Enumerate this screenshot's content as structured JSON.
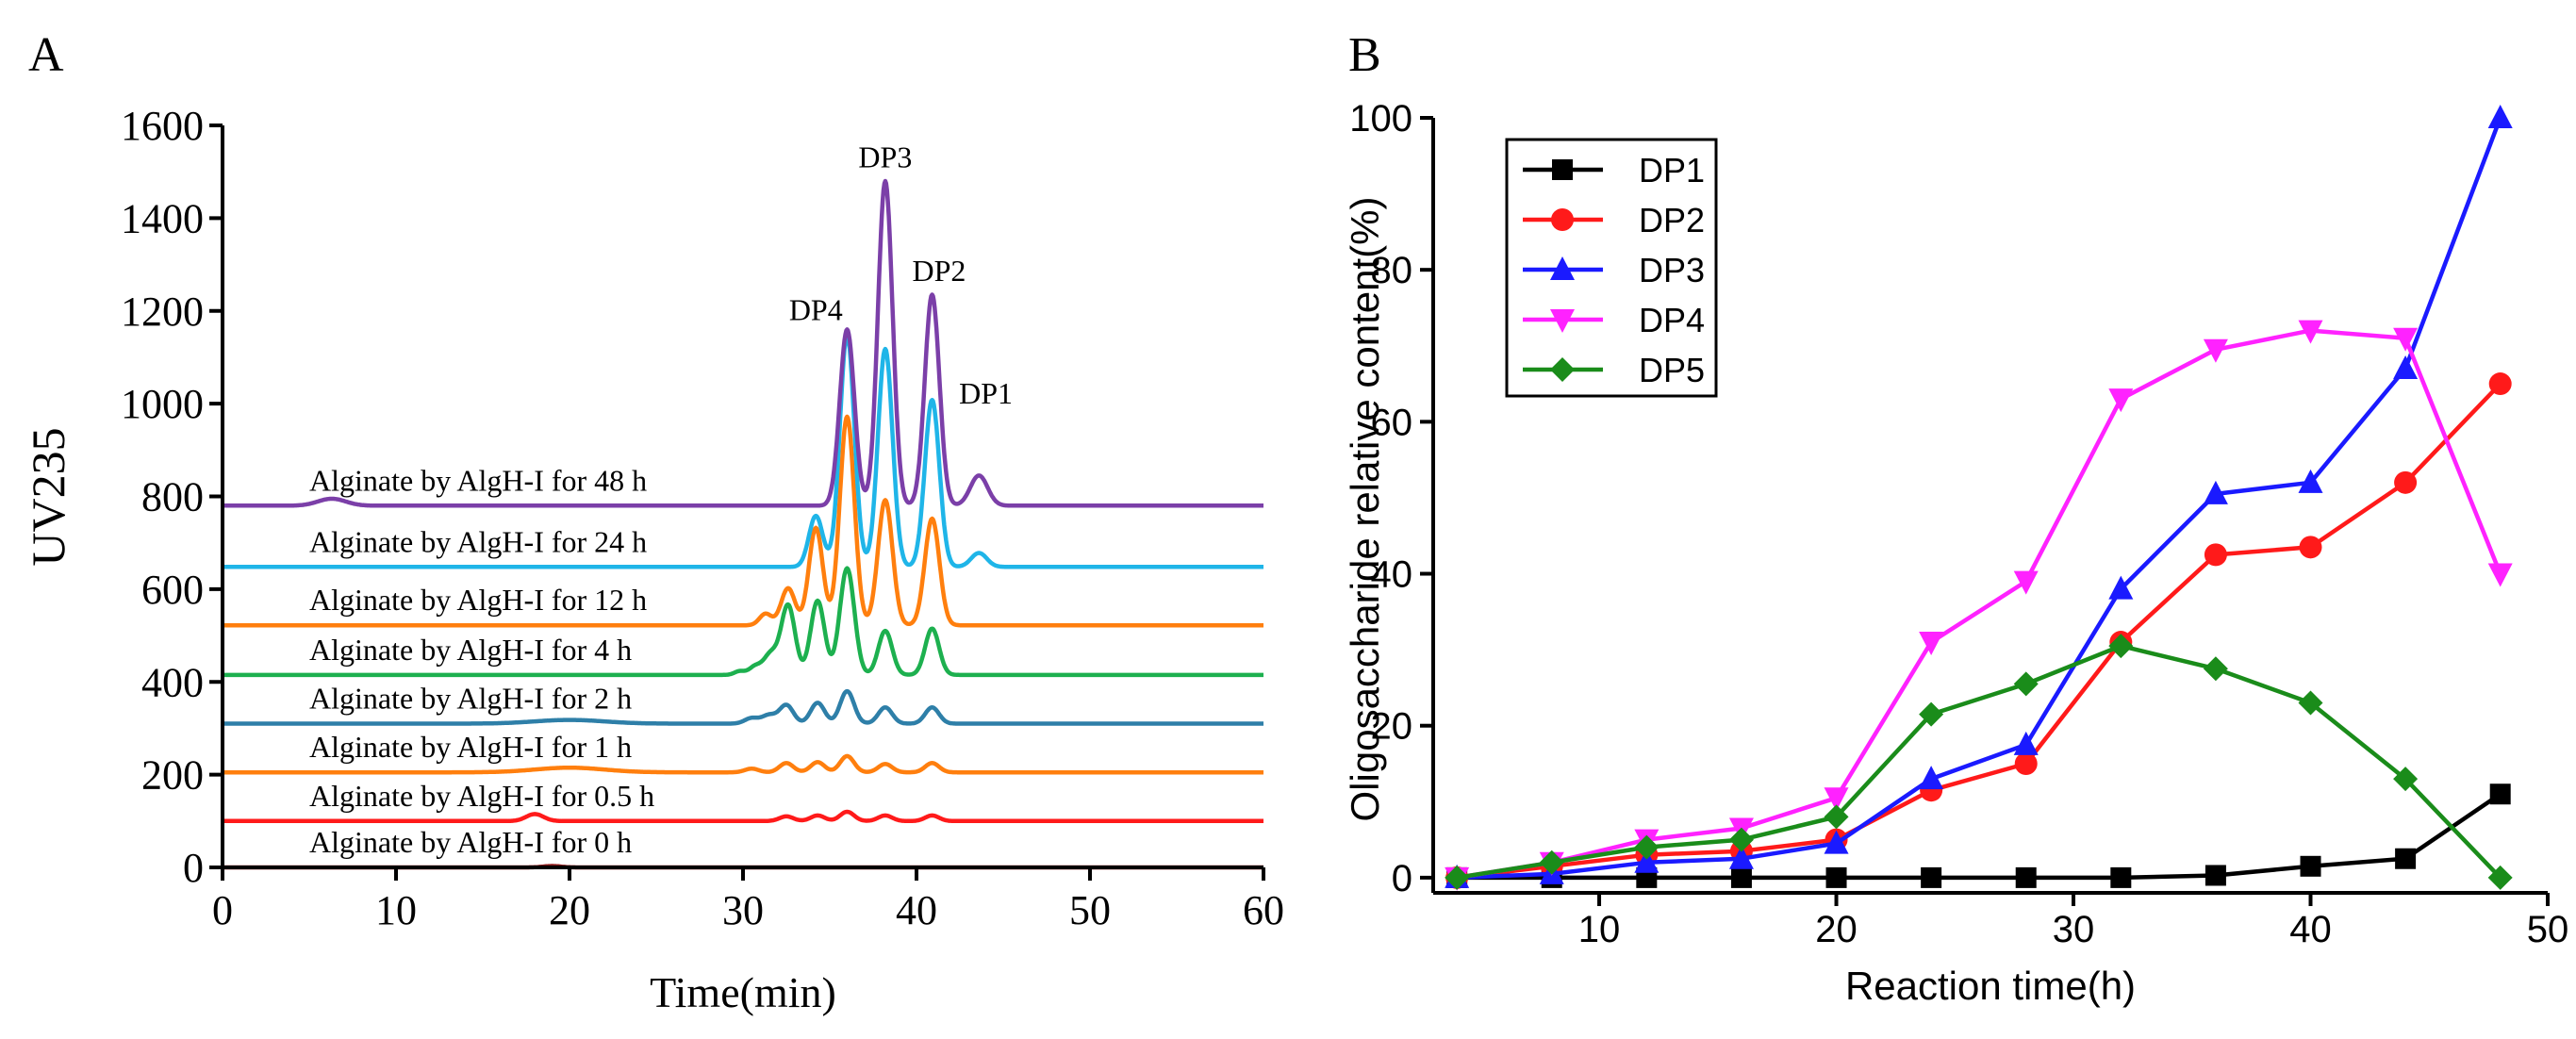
{
  "panels": {
    "a_label": "A",
    "b_label": "B"
  },
  "chart_data": [
    {
      "type": "line",
      "panel": "A",
      "title": "",
      "xlabel": "Time(min)",
      "ylabel": "UV235",
      "xlim": [
        0,
        60
      ],
      "ylim": [
        0,
        1600
      ],
      "xticks": [
        0,
        10,
        20,
        30,
        40,
        50,
        60
      ],
      "yticks": [
        0,
        200,
        400,
        600,
        800,
        1000,
        1200,
        1400,
        1600
      ],
      "peak_labels": [
        {
          "text": "DP4",
          "x": 34.2,
          "y": 1180
        },
        {
          "text": "DP3",
          "x": 38.2,
          "y": 1510
        },
        {
          "text": "DP2",
          "x": 41.3,
          "y": 1265
        },
        {
          "text": "DP1",
          "x": 44.0,
          "y": 1000
        }
      ],
      "series": [
        {
          "name": "Alginate by AlgH-I for 0 h",
          "color": "#8c1a1a",
          "baseline": 0,
          "peaks": [
            [
              19,
              3,
              0.5
            ]
          ]
        },
        {
          "name": "Alginate by AlgH-I for 0.5 h",
          "color": "#ff1a1a",
          "baseline": 100,
          "peaks": [
            [
              18,
              15,
              0.5
            ],
            [
              32.5,
              10,
              0.4
            ],
            [
              34.3,
              12,
              0.4
            ],
            [
              36,
              20,
              0.4
            ],
            [
              38.2,
              12,
              0.4
            ],
            [
              40.9,
              12,
              0.4
            ]
          ]
        },
        {
          "name": "Alginate by AlgH-I for 1 h",
          "color": "#ff7f0e",
          "baseline": 205,
          "peaks": [
            [
              20,
              10,
              2
            ],
            [
              30.5,
              8,
              0.4
            ],
            [
              32.5,
              20,
              0.4
            ],
            [
              34.3,
              22,
              0.4
            ],
            [
              36,
              35,
              0.4
            ],
            [
              38.2,
              18,
              0.4
            ],
            [
              40.9,
              20,
              0.4
            ]
          ]
        },
        {
          "name": "Alginate by AlgH-I for 2 h",
          "color": "#2e7fa8",
          "baseline": 310,
          "peaks": [
            [
              20,
              8,
              2
            ],
            [
              30.5,
              12,
              0.4
            ],
            [
              31.5,
              18,
              0.4
            ],
            [
              32.5,
              40,
              0.4
            ],
            [
              34.3,
              45,
              0.4
            ],
            [
              36,
              70,
              0.4
            ],
            [
              38.2,
              35,
              0.4
            ],
            [
              40.9,
              35,
              0.4
            ]
          ]
        },
        {
          "name": "Alginate by AlgH-I for 4 h",
          "color": "#1db04f",
          "baseline": 415,
          "peaks": [
            [
              29.8,
              8,
              0.3
            ],
            [
              30.7,
              18,
              0.35
            ],
            [
              31.6,
              45,
              0.4
            ],
            [
              32.6,
              150,
              0.4
            ],
            [
              34.3,
              160,
              0.4
            ],
            [
              36,
              230,
              0.42
            ],
            [
              38.2,
              95,
              0.4
            ],
            [
              40.9,
              100,
              0.4
            ]
          ]
        },
        {
          "name": "Alginate by AlgH-I for 12 h",
          "color": "#ff7f0e",
          "baseline": 522,
          "peaks": [
            [
              31.3,
              25,
              0.35
            ],
            [
              32.6,
              80,
              0.4
            ],
            [
              34.2,
              210,
              0.4
            ],
            [
              36,
              450,
              0.42
            ],
            [
              38.2,
              270,
              0.42
            ],
            [
              40.9,
              230,
              0.42
            ]
          ]
        },
        {
          "name": "Alginate by AlgH-I for 24 h",
          "color": "#1fb5e8",
          "baseline": 648,
          "peaks": [
            [
              34.2,
              110,
              0.4
            ],
            [
              36,
              500,
              0.42
            ],
            [
              38.2,
              470,
              0.42
            ],
            [
              40.9,
              360,
              0.42
            ],
            [
              43.6,
              30,
              0.45
            ]
          ]
        },
        {
          "name": "Alginate by AlgH-I for 48 h",
          "color": "#7b3fa8",
          "baseline": 780,
          "peaks": [
            [
              6.3,
              15,
              0.8
            ],
            [
              36,
              380,
              0.42
            ],
            [
              38.2,
              700,
              0.42
            ],
            [
              40.9,
              455,
              0.42
            ],
            [
              43.6,
              65,
              0.5
            ]
          ]
        }
      ]
    },
    {
      "type": "line",
      "panel": "B",
      "title": "",
      "xlabel": "Reaction time(h)",
      "ylabel": "Oligosaccharide relative content(%)",
      "xlim": [
        3,
        50
      ],
      "ylim": [
        -2,
        100
      ],
      "xticks": [
        10,
        20,
        30,
        40,
        50
      ],
      "yticks": [
        0,
        20,
        40,
        60,
        80,
        100
      ],
      "x": [
        4,
        8,
        12,
        16,
        20,
        24,
        28,
        32,
        36,
        40,
        44,
        48
      ],
      "legend_position": "top-left",
      "series": [
        {
          "name": "DP1",
          "color": "#000000",
          "marker": "square",
          "values": [
            0,
            0,
            0,
            0,
            0,
            0,
            0,
            0,
            0.3,
            1.5,
            2.5,
            11
          ]
        },
        {
          "name": "DP2",
          "color": "#ff1a1a",
          "marker": "circle",
          "values": [
            0,
            1.5,
            3,
            3.5,
            5,
            11.5,
            15,
            31,
            42.5,
            43.5,
            52,
            65
          ]
        },
        {
          "name": "DP3",
          "color": "#1a1aff",
          "marker": "triangle-up",
          "values": [
            0,
            0.5,
            2,
            2.5,
            4.5,
            13,
            17.5,
            38,
            50.5,
            52,
            67,
            100
          ]
        },
        {
          "name": "DP4",
          "color": "#ff22ff",
          "marker": "triangle-down",
          "values": [
            0,
            2,
            5,
            6.5,
            10.5,
            31,
            39,
            63,
            69.5,
            72,
            71,
            40
          ]
        },
        {
          "name": "DP5",
          "color": "#1a8c1a",
          "marker": "diamond",
          "values": [
            0,
            2,
            4,
            5,
            8,
            21.5,
            25.5,
            30.5,
            27.5,
            23,
            13,
            0
          ]
        }
      ]
    }
  ]
}
